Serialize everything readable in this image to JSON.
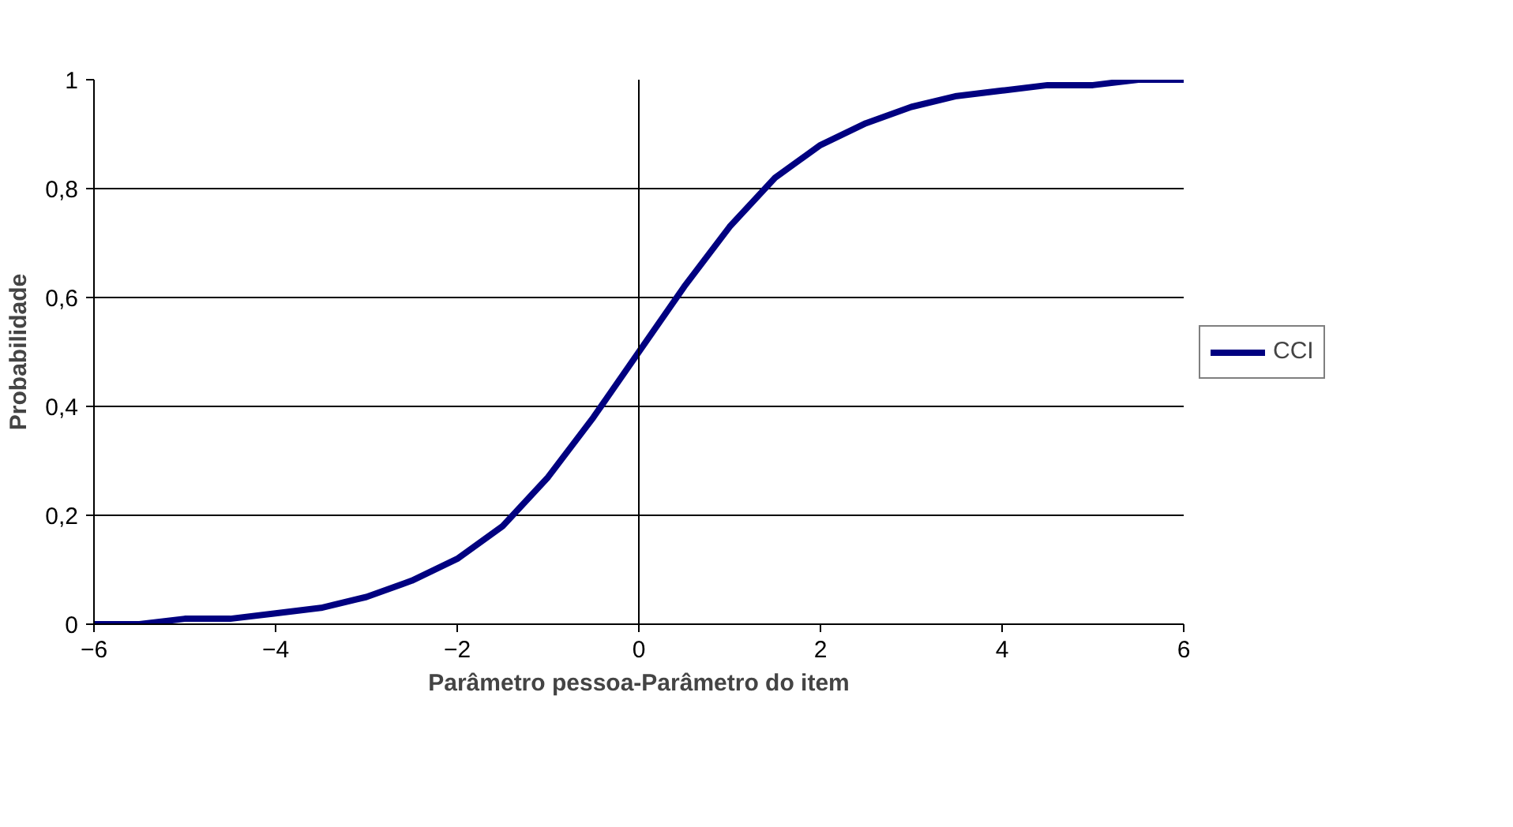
{
  "chart_data": {
    "type": "line",
    "xlabel": "Parâmetro pessoa-Parâmetro do item",
    "ylabel": "Probabilidade",
    "x": [
      -6,
      -5.5,
      -5,
      -4.5,
      -4,
      -3.5,
      -3,
      -2.5,
      -2,
      -1.5,
      -1,
      -0.5,
      0,
      0.5,
      1,
      1.5,
      2,
      2.5,
      3,
      3.5,
      4,
      4.5,
      5,
      5.5,
      6
    ],
    "series": [
      {
        "name": "CCI",
        "color": "#000080",
        "values": [
          0.0,
          0.0,
          0.01,
          0.01,
          0.02,
          0.03,
          0.05,
          0.08,
          0.12,
          0.18,
          0.27,
          0.38,
          0.5,
          0.62,
          0.73,
          0.82,
          0.88,
          0.92,
          0.95,
          0.97,
          0.98,
          0.99,
          0.99,
          1,
          1
        ]
      }
    ],
    "xlim": [
      -6,
      6
    ],
    "ylim": [
      0,
      1
    ],
    "xticks": [
      -6,
      -4,
      -2,
      0,
      2,
      4,
      6
    ],
    "yticks": [
      0,
      {
        "value": 0.2,
        "label": "0,2"
      },
      {
        "value": 0.4,
        "label": "0,4"
      },
      {
        "value": 0.6,
        "label": "0,6"
      },
      {
        "value": 0.8,
        "label": "0,8"
      },
      1
    ],
    "ref_lines": [
      {
        "axis": "x",
        "value": 0
      }
    ],
    "grid": "y",
    "legend": "right",
    "marker": "none",
    "line_style": "solid"
  }
}
